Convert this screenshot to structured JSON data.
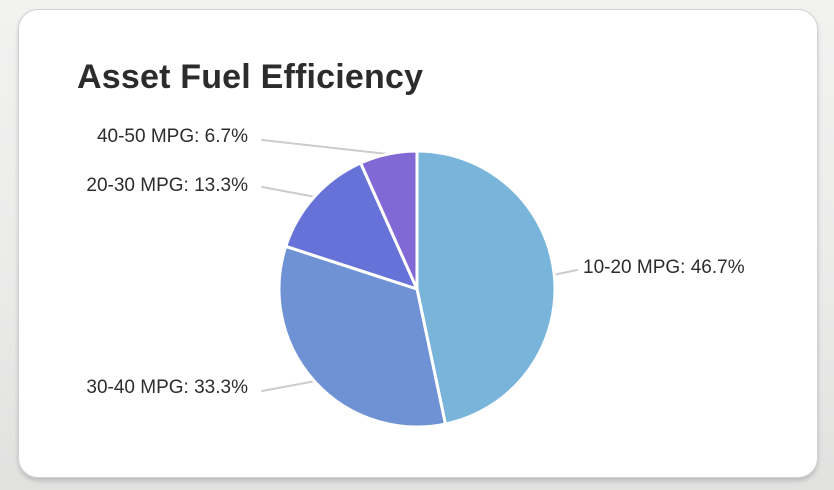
{
  "card": {
    "title": "Asset Fuel Efficiency"
  },
  "chart_data": {
    "type": "pie",
    "title": "Asset Fuel Efficiency",
    "legend": "none",
    "label_position": "outside-with-leader-lines",
    "direction": "clockwise",
    "start_angle": "12-o-clock",
    "slice_border_color": "#ffffff",
    "leader_line_color": "#cccccc",
    "label_text_color": "#2d2d2f",
    "title_text_color": "#2c2c2e",
    "slices": [
      {
        "category": "10-20 MPG",
        "percent": 46.7,
        "display": "10-20 MPG: 46.7%",
        "color": "#79b4db"
      },
      {
        "category": "30-40 MPG",
        "percent": 33.3,
        "display": "30-40 MPG: 33.3%",
        "color": "#6f92d5"
      },
      {
        "category": "20-30 MPG",
        "percent": 13.3,
        "display": "20-30 MPG: 13.3%",
        "color": "#6672d8"
      },
      {
        "category": "40-50 MPG",
        "percent": 6.7,
        "display": "40-50 MPG: 6.7%",
        "color": "#8168d4"
      }
    ]
  }
}
